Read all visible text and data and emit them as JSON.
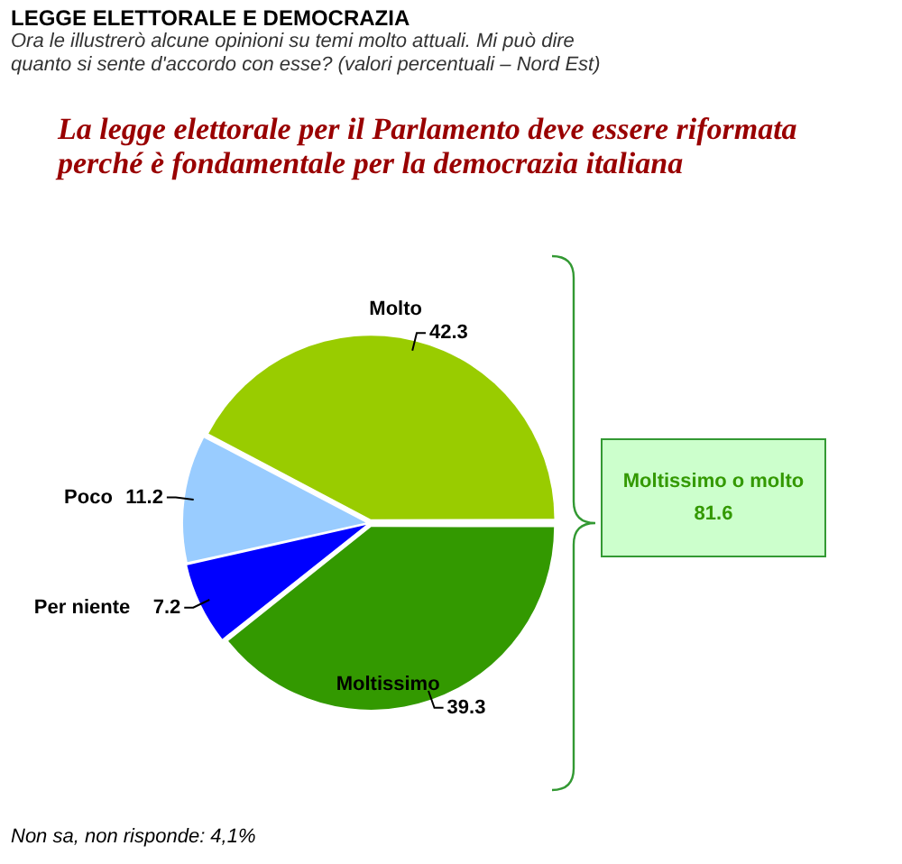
{
  "chart_data": {
    "type": "pie",
    "title": "LEGGE ELETTORALE  E DEMOCRAZIA",
    "subtitle": "Ora le illustrerò alcune opinioni su temi molto attuali. Mi può dire quanto si sente d'accordo con esse? (valori percentuali – Nord Est)",
    "categories": [
      "Moltissimo",
      "Per niente",
      "Poco",
      "Molto"
    ],
    "values": [
      39.3,
      7.2,
      11.2,
      42.3
    ],
    "colors": [
      "#339900",
      "#0000ff",
      "#99ccff",
      "#99cc00"
    ],
    "data_labels": true,
    "legend": false,
    "annotations": [
      "La legge elettorale per il Parlamento deve essere riformata perché è fondamentale per la democrazia italiana",
      "Moltissimo o molto\n81.6",
      "Non sa, non risponde: 4,1%"
    ]
  }
}
